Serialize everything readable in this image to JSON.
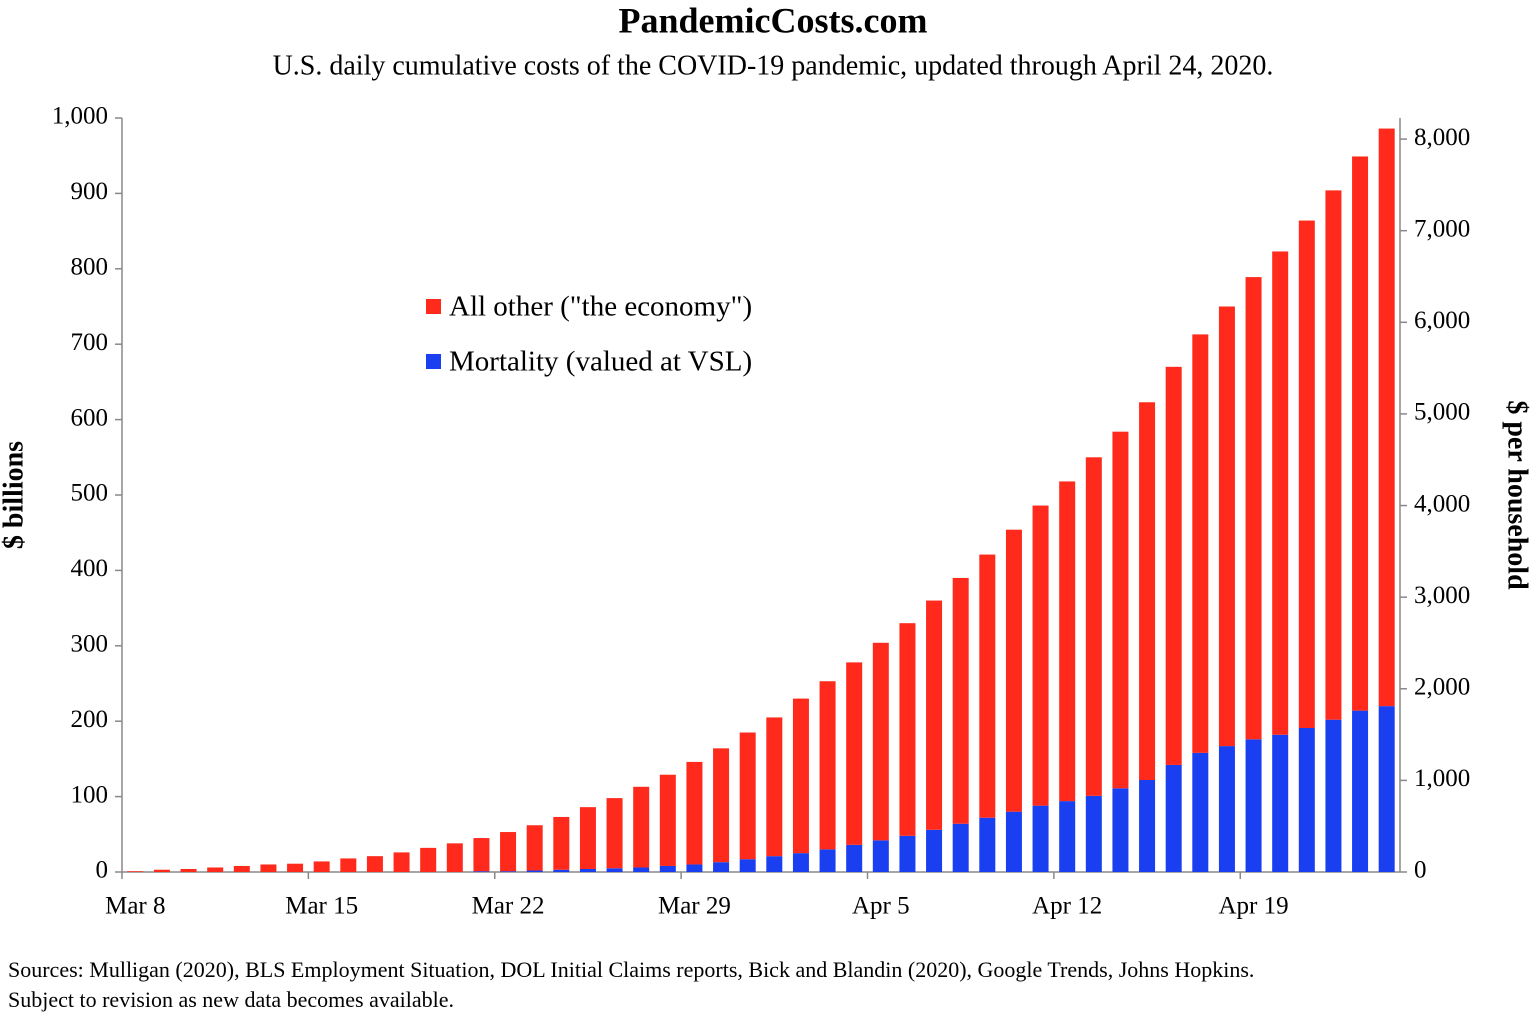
{
  "chart_data": {
    "type": "stacked_bar",
    "title": "PandemicCosts.com",
    "subtitle": "U.S. daily cumulative costs of the COVID-19 pandemic, updated through April 24, 2020.",
    "y_label": "$ billions",
    "y2_label": "$ per household",
    "notes": [
      "Sources: Mulligan (2020), BLS Employment Situation, DOL Initial Claims reports, Bick and Blandin (2020), Google Trends, Johns Hopkins.",
      "Subject to revision as new data becomes available."
    ],
    "categories": [
      "Mar 8",
      null,
      null,
      null,
      null,
      null,
      null,
      "Mar 15",
      null,
      null,
      null,
      null,
      null,
      null,
      "Mar 22",
      null,
      null,
      null,
      null,
      null,
      null,
      "Mar 29",
      null,
      null,
      null,
      null,
      null,
      null,
      "Apr 5",
      null,
      null,
      null,
      null,
      null,
      null,
      "Apr 12",
      null,
      null,
      null,
      null,
      null,
      null,
      "Apr 19",
      null,
      null,
      null,
      null,
      null
    ],
    "series": [
      {
        "name": "Mortality (valued at VSL)",
        "color": "#1a3ff0",
        "values": [
          0,
          0,
          0,
          0,
          0,
          0,
          0,
          0,
          0,
          0,
          0,
          0,
          0,
          1,
          1,
          2,
          3,
          4,
          5,
          6,
          8,
          10,
          13,
          17,
          21,
          25,
          30,
          36,
          42,
          48,
          56,
          64,
          72,
          80,
          88,
          94,
          101,
          111,
          122,
          142,
          158,
          167,
          176,
          182,
          191,
          202,
          214,
          220
        ]
      },
      {
        "name": "All other (\"the economy\")",
        "color": "#ff2a1c",
        "values": [
          1,
          3,
          4,
          6,
          8,
          10,
          11,
          14,
          18,
          21,
          26,
          32,
          38,
          44,
          52,
          60,
          70,
          82,
          93,
          107,
          121,
          136,
          151,
          168,
          184,
          205,
          223,
          242,
          262,
          282,
          304,
          326,
          349,
          374,
          398,
          424,
          449,
          473,
          501,
          528,
          555,
          583,
          613,
          641,
          673,
          702,
          735,
          766
        ]
      }
    ],
    "ylim": [
      0,
      1000
    ],
    "yticks": [
      0,
      100,
      200,
      300,
      400,
      500,
      600,
      700,
      800,
      900,
      {
        "value": 1000,
        "label": "1,000"
      }
    ],
    "y2lim": [
      0,
      8230
    ],
    "y2ticks": [
      0,
      {
        "value": 1000,
        "label": "1,000"
      },
      {
        "value": 2000,
        "label": "2,000"
      },
      {
        "value": 3000,
        "label": "3,000"
      },
      {
        "value": 4000,
        "label": "4,000"
      },
      {
        "value": 5000,
        "label": "5,000"
      },
      {
        "value": 6000,
        "label": "6,000"
      },
      {
        "value": 7000,
        "label": "7,000"
      },
      {
        "value": 8000,
        "label": "8,000"
      }
    ],
    "grid": false
  }
}
